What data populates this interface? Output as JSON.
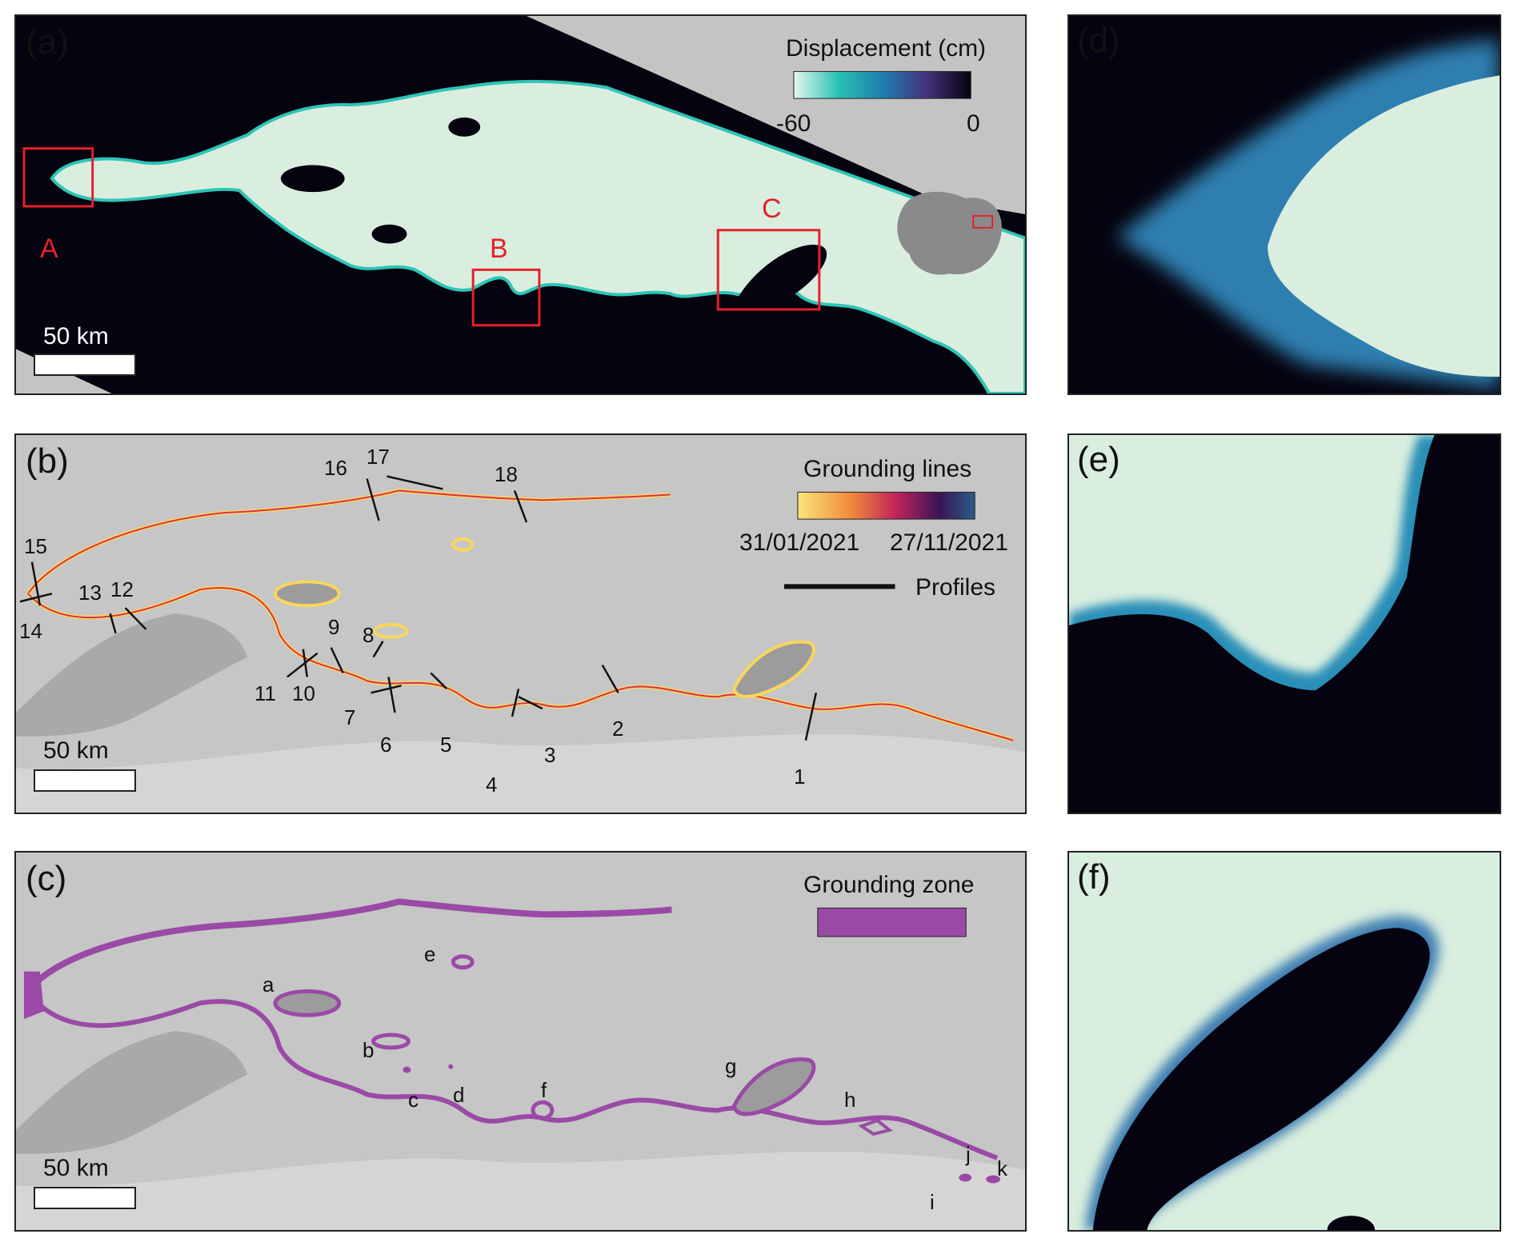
{
  "panels": {
    "a": {
      "label": "(a)",
      "legend_title": "Displacement (cm)",
      "cbar_min": "-60",
      "cbar_max": "0",
      "boxes": [
        "A",
        "B",
        "C"
      ],
      "scalebar": "50 km"
    },
    "b": {
      "label": "(b)",
      "legend_title": "Grounding lines",
      "date_start": "31/01/2021",
      "date_end": "27/11/2021",
      "profiles_label": "Profiles",
      "profile_numbers": [
        "1",
        "2",
        "3",
        "4",
        "5",
        "6",
        "7",
        "8",
        "9",
        "10",
        "11",
        "12",
        "13",
        "14",
        "15",
        "16",
        "17",
        "18"
      ],
      "scalebar": "50 km"
    },
    "c": {
      "label": "(c)",
      "legend_title": "Grounding zone",
      "zone_letters": [
        "a",
        "b",
        "c",
        "d",
        "e",
        "f",
        "g",
        "h",
        "i",
        "j",
        "k"
      ],
      "scalebar": "50 km"
    },
    "d": {
      "label": "(d)"
    },
    "e": {
      "label": "(e)"
    },
    "f": {
      "label": "(f)"
    }
  },
  "colors": {
    "ice": "#d9eedf",
    "ocean_dark": "#05030f",
    "hillshade": "#c4c4c4",
    "box_red": "#e5202a",
    "grounding_zone": "#9a4aa6",
    "gl_yellow": "#f9d65a",
    "gl_red": "#d6304f",
    "gl_navy": "#1e3264"
  }
}
